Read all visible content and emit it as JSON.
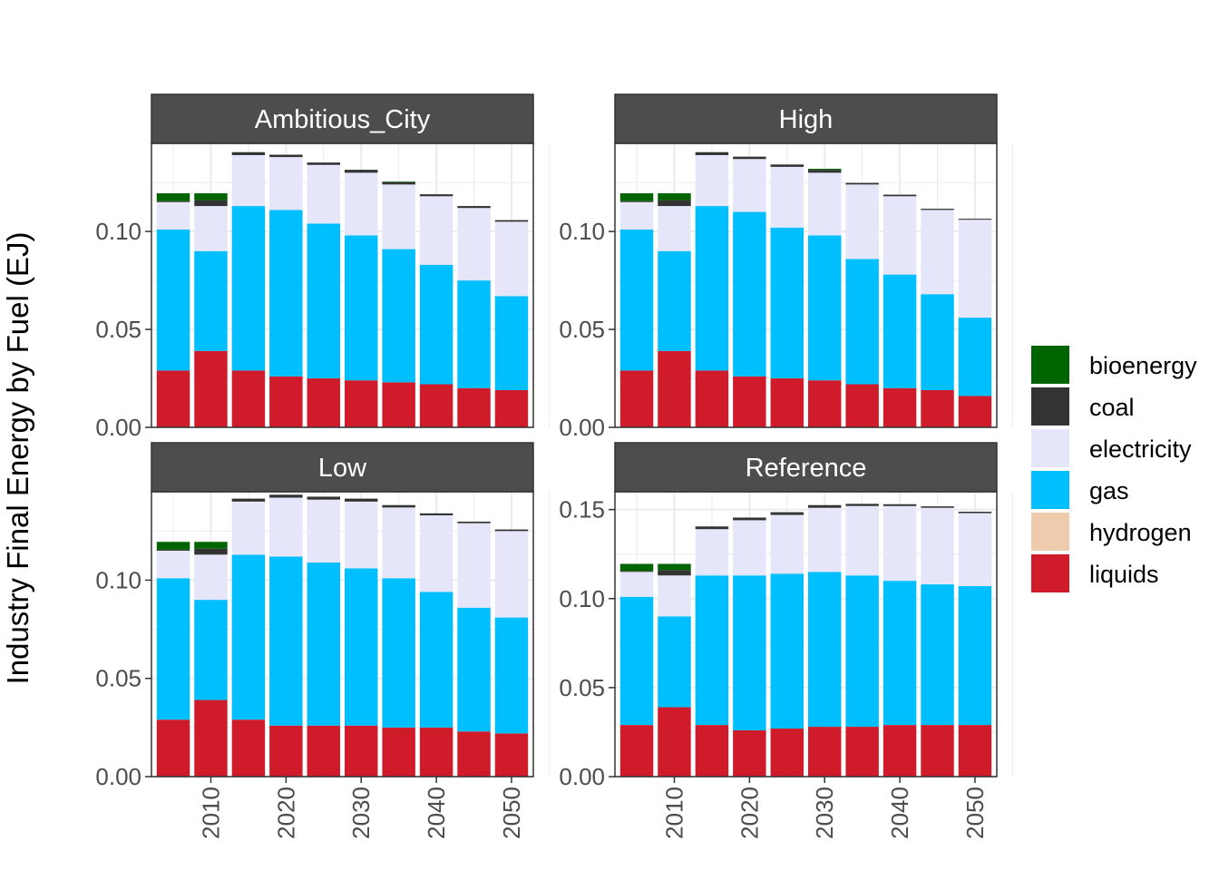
{
  "chart_data": {
    "type": "bar",
    "stacked": true,
    "faceted": true,
    "ylabel": "Industry Final Energy by Fuel (EJ)",
    "xlabel": "",
    "years": [
      2005,
      2010,
      2015,
      2020,
      2025,
      2030,
      2035,
      2040,
      2045,
      2050
    ],
    "x_ticks": [
      "2010",
      "2020",
      "2030",
      "2040",
      "2050"
    ],
    "x_tick_values": [
      2010,
      2020,
      2030,
      2040,
      2050
    ],
    "fuels": [
      "liquids",
      "hydrogen",
      "gas",
      "electricity",
      "coal",
      "bioenergy"
    ],
    "legend": {
      "position": "right",
      "items": [
        "bioenergy",
        "coal",
        "electricity",
        "gas",
        "hydrogen",
        "liquids"
      ]
    },
    "colors": {
      "bioenergy": "#006400",
      "coal": "#333333",
      "electricity": "#E6E6FA",
      "gas": "#00BFFF",
      "hydrogen": "#EECBAD",
      "liquids": "#D01C2A",
      "strip_background": "#4D4D4D",
      "grid": "#EBEBEB"
    },
    "grid": true,
    "panels": [
      {
        "title": "Ambitious_City",
        "ylim": [
          0,
          0.145
        ],
        "y_ticks": [
          "0.00",
          "0.05",
          "0.10"
        ],
        "y_tick_values": [
          0,
          0.05,
          0.1
        ],
        "series": {
          "liquids": [
            0.029,
            0.039,
            0.029,
            0.026,
            0.025,
            0.024,
            0.023,
            0.022,
            0.02,
            0.019
          ],
          "hydrogen": [
            0,
            0,
            0,
            0,
            0,
            0,
            0,
            0,
            0,
            0
          ],
          "gas": [
            0.072,
            0.051,
            0.084,
            0.085,
            0.079,
            0.074,
            0.068,
            0.061,
            0.055,
            0.048
          ],
          "electricity": [
            0.014,
            0.023,
            0.026,
            0.027,
            0.03,
            0.032,
            0.033,
            0.035,
            0.037,
            0.038
          ],
          "coal": [
            0.0005,
            0.003,
            0.0015,
            0.0012,
            0.0012,
            0.0015,
            0.0012,
            0.001,
            0.001,
            0.0008
          ],
          "bioenergy": [
            0.004,
            0.0035,
            0,
            0,
            0,
            0,
            0.0003,
            0,
            0,
            0
          ]
        }
      },
      {
        "title": "High",
        "ylim": [
          0,
          0.145
        ],
        "y_ticks": [
          "0.00",
          "0.05",
          "0.10"
        ],
        "y_tick_values": [
          0,
          0.05,
          0.1
        ],
        "series": {
          "liquids": [
            0.029,
            0.039,
            0.029,
            0.026,
            0.025,
            0.024,
            0.022,
            0.02,
            0.019,
            0.016
          ],
          "hydrogen": [
            0,
            0,
            0,
            0,
            0,
            0,
            0,
            0,
            0,
            0
          ],
          "gas": [
            0.072,
            0.051,
            0.084,
            0.084,
            0.077,
            0.074,
            0.064,
            0.058,
            0.049,
            0.04
          ],
          "electricity": [
            0.014,
            0.023,
            0.026,
            0.027,
            0.031,
            0.032,
            0.038,
            0.04,
            0.043,
            0.05
          ],
          "coal": [
            0.0005,
            0.003,
            0.0015,
            0.0012,
            0.0012,
            0.0015,
            0.0008,
            0.0008,
            0.0006,
            0.0005
          ],
          "bioenergy": [
            0.004,
            0.0035,
            0,
            0,
            0,
            0.0005,
            0,
            0,
            0,
            0
          ]
        }
      },
      {
        "title": "Low",
        "ylim": [
          0,
          0.145
        ],
        "y_ticks": [
          "0.00",
          "0.05",
          "0.10"
        ],
        "y_tick_values": [
          0,
          0.05,
          0.1
        ],
        "series": {
          "liquids": [
            0.029,
            0.039,
            0.029,
            0.026,
            0.026,
            0.026,
            0.025,
            0.025,
            0.023,
            0.022
          ],
          "hydrogen": [
            0,
            0,
            0,
            0,
            0,
            0,
            0,
            0,
            0,
            0
          ],
          "gas": [
            0.072,
            0.051,
            0.084,
            0.086,
            0.083,
            0.08,
            0.076,
            0.069,
            0.063,
            0.059
          ],
          "electricity": [
            0.014,
            0.023,
            0.027,
            0.03,
            0.032,
            0.034,
            0.036,
            0.039,
            0.043,
            0.044
          ],
          "coal": [
            0.0005,
            0.003,
            0.0015,
            0.0015,
            0.0015,
            0.0015,
            0.0012,
            0.001,
            0.0008,
            0.0008
          ],
          "bioenergy": [
            0.004,
            0.0035,
            0,
            0,
            0,
            0,
            0,
            0,
            0,
            0
          ]
        }
      },
      {
        "title": "Reference",
        "ylim": [
          0,
          0.16
        ],
        "y_ticks": [
          "0.00",
          "0.05",
          "0.10",
          "0.15"
        ],
        "y_tick_values": [
          0,
          0.05,
          0.1,
          0.15
        ],
        "series": {
          "liquids": [
            0.029,
            0.039,
            0.029,
            0.026,
            0.027,
            0.028,
            0.028,
            0.029,
            0.029,
            0.029
          ],
          "hydrogen": [
            0,
            0,
            0,
            0,
            0,
            0,
            0,
            0,
            0,
            0
          ],
          "gas": [
            0.072,
            0.051,
            0.084,
            0.087,
            0.087,
            0.087,
            0.085,
            0.081,
            0.079,
            0.078
          ],
          "electricity": [
            0.014,
            0.023,
            0.026,
            0.031,
            0.033,
            0.036,
            0.039,
            0.042,
            0.043,
            0.041
          ],
          "coal": [
            0.0005,
            0.003,
            0.0015,
            0.0015,
            0.0015,
            0.0015,
            0.0012,
            0.001,
            0.0008,
            0.0008
          ],
          "bioenergy": [
            0.004,
            0.0035,
            0,
            0,
            0,
            0,
            0,
            0,
            0,
            0
          ]
        }
      }
    ]
  }
}
